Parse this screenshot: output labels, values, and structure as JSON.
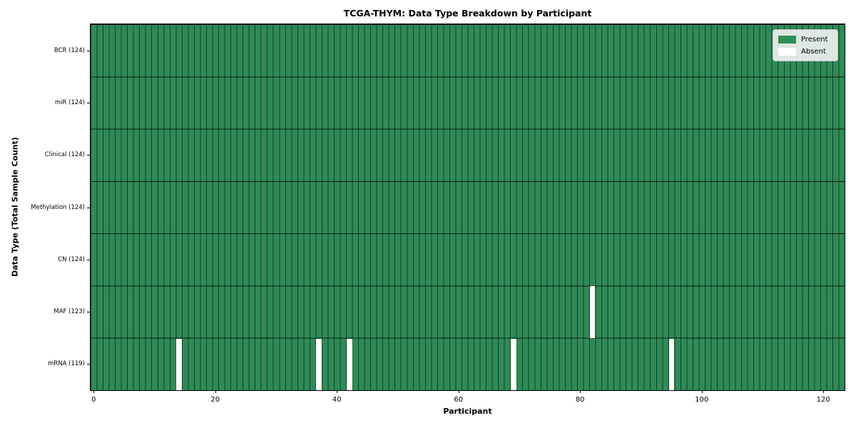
{
  "figure": {
    "title": "TCGA-THYM: Data Type Breakdown by Participant",
    "xlabel": "Participant",
    "ylabel": "Data Type (Total Sample Count)"
  },
  "colors": {
    "present": "#2e8b57",
    "absent": "#ffffff",
    "cell_line": "rgba(0,0,0,0.55)",
    "row_line": "rgba(0,0,0,0.8)",
    "frame": "#000000"
  },
  "chart_data": {
    "type": "heatmap",
    "title": "TCGA-THYM: Data Type Breakdown by Participant",
    "xlabel": "Participant",
    "ylabel": "Data Type (Total Sample Count)",
    "n_participants": 124,
    "x_ticks": [
      0,
      20,
      40,
      60,
      80,
      100,
      120
    ],
    "xlim": [
      -0.5,
      123.5
    ],
    "grid": "cell-borders",
    "legend_position": "upper right",
    "rows": [
      {
        "label": "BCR (124)",
        "data_type": "BCR",
        "present_count": 124,
        "absent_participants": []
      },
      {
        "label": "miR (124)",
        "data_type": "miR",
        "present_count": 124,
        "absent_participants": []
      },
      {
        "label": "Clinical (124)",
        "data_type": "Clinical",
        "present_count": 124,
        "absent_participants": []
      },
      {
        "label": "Methylation (124)",
        "data_type": "Methylation",
        "present_count": 124,
        "absent_participants": []
      },
      {
        "label": "CN (124)",
        "data_type": "CN",
        "present_count": 124,
        "absent_participants": []
      },
      {
        "label": "MAF (123)",
        "data_type": "MAF",
        "present_count": 123,
        "absent_participants": [
          82
        ]
      },
      {
        "label": "mRNA (119)",
        "data_type": "mRNA",
        "present_count": 119,
        "absent_participants": [
          14,
          37,
          42,
          69,
          95
        ]
      }
    ],
    "legend": [
      {
        "label": "Present",
        "color": "#2e8b57"
      },
      {
        "label": "Absent",
        "color": "#ffffff"
      }
    ]
  }
}
